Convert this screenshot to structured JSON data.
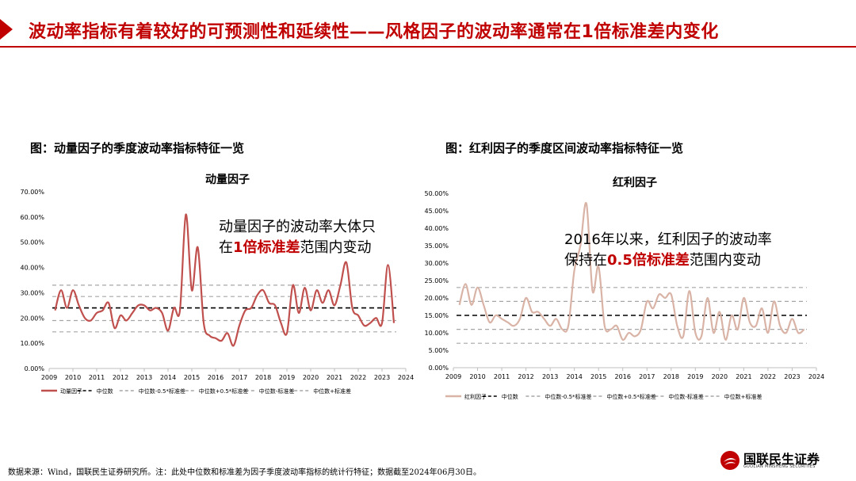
{
  "header": {
    "title": "波动率指标有着较好的可预测性和延续性——风格因子的波动率通常在1倍标准差内变化"
  },
  "footer": {
    "source": "数据来源：Wind，国联民生证券研究所。注：此处中位数和标准差为因子季度波动率指标的统计行特征；数据截至2024年06月30日。"
  },
  "logo": {
    "name": "国联民生证券",
    "sub": "GUOLIAN MINSHENG SECURITIES"
  },
  "colors": {
    "accent": "#c00000",
    "momentum_line": "#c0504d",
    "dividend_line": "#d9b3a6",
    "median_line": "#000000",
    "band_line": "#a6a6a6"
  },
  "left": {
    "caption": "图：动量因子的季度波动率指标特征一览",
    "annotation": {
      "line1": "动量因子的波动率大体只",
      "line2_pre": "在",
      "line2_hl": "1倍标准差",
      "line2_post": "范围内变动"
    }
  },
  "right": {
    "caption": "图：红利因子的季度区间波动率指标特征一览",
    "annotation": {
      "line1": "2016年以来，红利因子的波动率",
      "line2_pre": "保持在",
      "line2_hl": "0.5倍标准差",
      "line2_post": "范围内变动"
    }
  },
  "chart_data": [
    {
      "type": "line",
      "title": "动量因子",
      "x_ticks": [
        "2009",
        "2010",
        "2011",
        "2012",
        "2013",
        "2014",
        "2015",
        "2016",
        "2017",
        "2018",
        "2019",
        "2020",
        "2021",
        "2022",
        "2023",
        "2024"
      ],
      "xlim": [
        2009,
        2024
      ],
      "ylim": [
        0,
        70
      ],
      "y_ticks": [
        "0.00%",
        "10.00%",
        "20.00%",
        "30.00%",
        "40.00%",
        "50.00%",
        "60.00%",
        "70.00%"
      ],
      "legend": [
        "动量因子",
        "中位数",
        "中位数-0.5*标准差",
        "中位数+0.5*标准差",
        "中位数-标准差",
        "中位数+标准差"
      ],
      "series": [
        {
          "name": "动量因子",
          "x": [
            2009.25,
            2009.5,
            2009.75,
            2010.0,
            2010.25,
            2010.5,
            2010.75,
            2011.0,
            2011.25,
            2011.5,
            2011.75,
            2012.0,
            2012.25,
            2012.5,
            2012.75,
            2013.0,
            2013.25,
            2013.5,
            2013.75,
            2014.0,
            2014.25,
            2014.5,
            2014.75,
            2015.0,
            2015.25,
            2015.5,
            2015.75,
            2016.0,
            2016.25,
            2016.5,
            2016.75,
            2017.0,
            2017.25,
            2017.5,
            2017.75,
            2018.0,
            2018.25,
            2018.5,
            2018.75,
            2019.0,
            2019.25,
            2019.5,
            2019.75,
            2020.0,
            2020.25,
            2020.5,
            2020.75,
            2021.0,
            2021.25,
            2021.5,
            2021.75,
            2022.0,
            2022.25,
            2022.5,
            2022.75,
            2023.0,
            2023.25,
            2023.5
          ],
          "values": [
            23,
            31,
            24,
            31,
            25,
            20,
            19,
            22,
            23,
            26,
            16,
            21,
            19,
            22,
            25,
            25,
            23,
            24,
            22,
            15,
            24,
            23,
            61,
            31,
            48,
            18,
            13,
            12,
            11,
            14,
            9,
            17,
            23,
            24,
            29,
            31,
            26,
            25,
            18,
            14,
            33,
            22,
            32,
            23,
            31,
            26,
            31,
            25,
            33,
            42,
            24,
            21,
            17,
            18,
            20,
            18,
            41,
            18
          ]
        },
        {
          "name": "中位数",
          "values": [
            24
          ]
        },
        {
          "name": "中位数-0.5*标准差",
          "values": [
            19
          ]
        },
        {
          "name": "中位数+0.5*标准差",
          "values": [
            28.5
          ]
        },
        {
          "name": "中位数-标准差",
          "values": [
            14.5
          ]
        },
        {
          "name": "中位数+标准差",
          "values": [
            33
          ]
        }
      ]
    },
    {
      "type": "line",
      "title": "红利因子",
      "x_ticks": [
        "2009",
        "2010",
        "2011",
        "2012",
        "2013",
        "2014",
        "2015",
        "2016",
        "2017",
        "2018",
        "2019",
        "2020",
        "2021",
        "2022",
        "2023",
        "2024"
      ],
      "xlim": [
        2009,
        2024
      ],
      "ylim": [
        0,
        50
      ],
      "y_ticks": [
        "0.00%",
        "5.00%",
        "10.00%",
        "15.00%",
        "20.00%",
        "25.00%",
        "30.00%",
        "35.00%",
        "40.00%",
        "45.00%",
        "50.00%"
      ],
      "legend": [
        "红利因子",
        "中位数",
        "中位数-0.5*标准差",
        "中位数+0.5*标准差",
        "中位数-标准差",
        "中位数+标准差"
      ],
      "series": [
        {
          "name": "红利因子",
          "x": [
            2009.25,
            2009.5,
            2009.75,
            2010.0,
            2010.25,
            2010.5,
            2010.75,
            2011.0,
            2011.25,
            2011.5,
            2011.75,
            2012.0,
            2012.25,
            2012.5,
            2012.75,
            2013.0,
            2013.25,
            2013.5,
            2013.75,
            2014.0,
            2014.25,
            2014.5,
            2014.75,
            2015.0,
            2015.25,
            2015.5,
            2015.75,
            2016.0,
            2016.25,
            2016.5,
            2016.75,
            2017.0,
            2017.25,
            2017.5,
            2017.75,
            2018.0,
            2018.25,
            2018.5,
            2018.75,
            2019.0,
            2019.25,
            2019.5,
            2019.75,
            2020.0,
            2020.25,
            2020.5,
            2020.75,
            2021.0,
            2021.25,
            2021.5,
            2021.75,
            2022.0,
            2022.25,
            2022.5,
            2022.75,
            2023.0,
            2023.25,
            2023.5
          ],
          "values": [
            18,
            24,
            18,
            23,
            18,
            13,
            15,
            14,
            13,
            12,
            14,
            20,
            16,
            16,
            14,
            12,
            14,
            11,
            12,
            28,
            35,
            47,
            22,
            29,
            12,
            11,
            12,
            8,
            10,
            9,
            11,
            19,
            17,
            21,
            20,
            21,
            12,
            9,
            22,
            10,
            9,
            20,
            10,
            16,
            8,
            15,
            11,
            20,
            13,
            12,
            17,
            10,
            19,
            12,
            10,
            14,
            10,
            11
          ]
        },
        {
          "name": "中位数",
          "values": [
            15
          ]
        },
        {
          "name": "中位数-0.5*标准差",
          "values": [
            11
          ]
        },
        {
          "name": "中位数+0.5*标准差",
          "values": [
            19
          ]
        },
        {
          "name": "中位数-标准差",
          "values": [
            7
          ]
        },
        {
          "name": "中位数+标准差",
          "values": [
            23
          ]
        }
      ]
    }
  ]
}
